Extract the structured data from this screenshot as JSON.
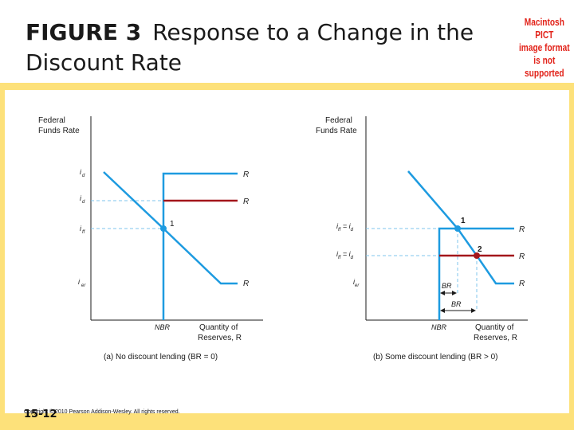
{
  "title": {
    "figure_label": "FIGURE 3",
    "text": "Response to a Change in the Discount Rate"
  },
  "placeholder_image": {
    "lines": [
      "Macintosh PICT",
      "image format",
      "is not supported"
    ]
  },
  "panel_a": {
    "y_axis_label_line1": "Federal",
    "y_axis_label_line2": "Funds Rate",
    "x_axis_label_line1": "Quantity of",
    "x_axis_label_line2": "Reserves, R",
    "caption": "(a) No discount lending (BR = 0)",
    "nbr_label": "NBR",
    "point_label": "1",
    "rate_labels": [
      "i",
      "i",
      "i",
      "i"
    ],
    "supply_label_1": "R",
    "supply_label_2": "R",
    "demand_label": "R"
  },
  "panel_b": {
    "y_axis_label_line1": "Federal",
    "y_axis_label_line2": "Funds Rate",
    "x_axis_label_line1": "Quantity of",
    "x_axis_label_line2": "Reserves, R",
    "caption": "(b) Some discount lending (BR > 0)",
    "nbr_label": "NBR",
    "br1_label": "BR",
    "br2_label": "BR",
    "point1_label": "1",
    "point2_label": "2",
    "supply_label_1": "R",
    "supply_label_2": "R",
    "demand_label": "R"
  },
  "footer": {
    "slide_number": "15-12",
    "copyright": "Copyright © 2010 Pearson Addison-Wesley. All rights reserved."
  },
  "colors": {
    "curve_blue": "#1e9be0",
    "curve_red": "#a3161b",
    "dashed_blue": "#7fc4ec",
    "frame_yellow": "#fde17a"
  }
}
